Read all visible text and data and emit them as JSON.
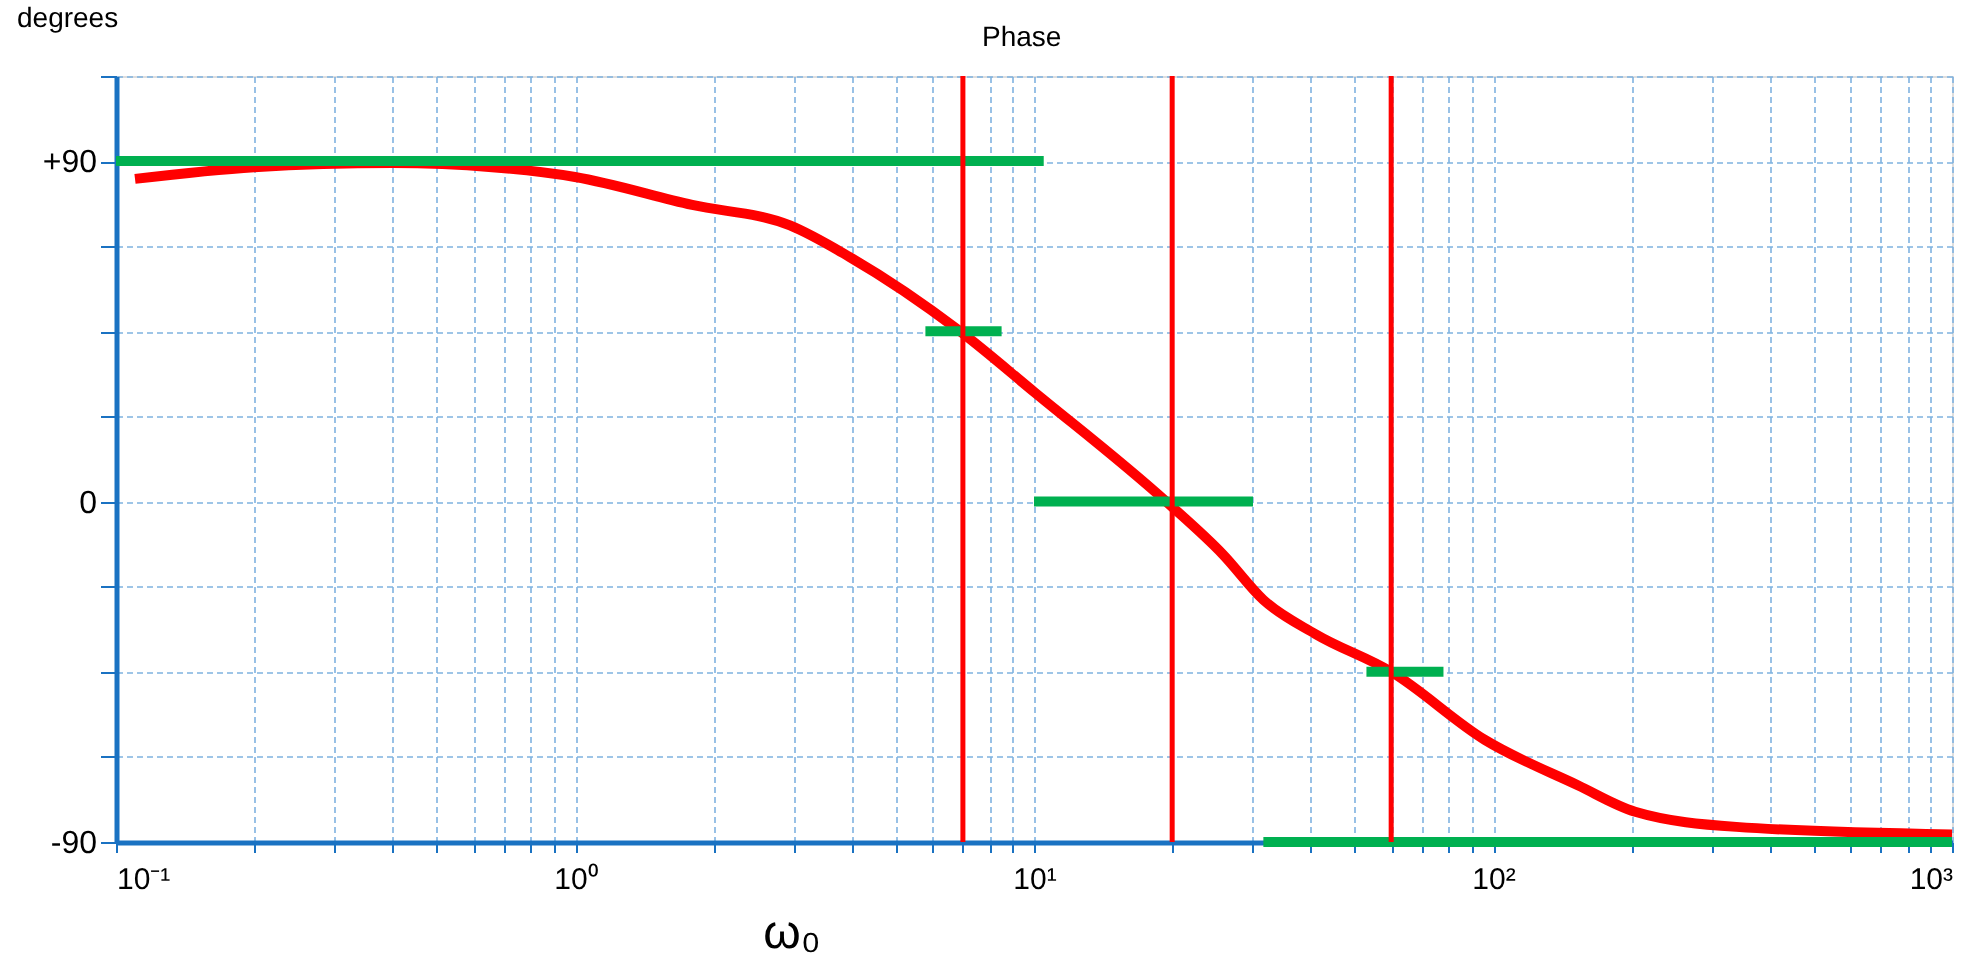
{
  "chart_data": {
    "type": "line",
    "title": "Phase",
    "ylabel": "degrees",
    "annotations": [
      "ω₀"
    ],
    "log": "x",
    "grid": true,
    "legend": false,
    "line_style": "solid",
    "marker": "none",
    "xlim": [
      0.1,
      1000
    ],
    "ylim": [
      -90,
      112.5
    ],
    "xticks": [
      {
        "value": 0.1,
        "label": "10⁻¹"
      },
      {
        "value": 0.2,
        "label": null
      },
      {
        "value": 0.3,
        "label": null
      },
      {
        "value": 0.4,
        "label": null
      },
      {
        "value": 0.5,
        "label": null
      },
      {
        "value": 0.6,
        "label": null
      },
      {
        "value": 0.7,
        "label": null
      },
      {
        "value": 0.8,
        "label": null
      },
      {
        "value": 0.9,
        "label": null
      },
      {
        "value": 1,
        "label": "10⁰"
      },
      {
        "value": 2,
        "label": null
      },
      {
        "value": 3,
        "label": null
      },
      {
        "value": 4,
        "label": null
      },
      {
        "value": 5,
        "label": null
      },
      {
        "value": 6,
        "label": null
      },
      {
        "value": 7,
        "label": null
      },
      {
        "value": 8,
        "label": null
      },
      {
        "value": 9,
        "label": null
      },
      {
        "value": 10,
        "label": "10¹"
      },
      {
        "value": 20,
        "label": null
      },
      {
        "value": 30,
        "label": null
      },
      {
        "value": 40,
        "label": null
      },
      {
        "value": 50,
        "label": null
      },
      {
        "value": 60,
        "label": null
      },
      {
        "value": 70,
        "label": null
      },
      {
        "value": 80,
        "label": null
      },
      {
        "value": 90,
        "label": null
      },
      {
        "value": 100,
        "label": "10²"
      },
      {
        "value": 200,
        "label": null
      },
      {
        "value": 300,
        "label": null
      },
      {
        "value": 400,
        "label": null
      },
      {
        "value": 500,
        "label": null
      },
      {
        "value": 600,
        "label": null
      },
      {
        "value": 700,
        "label": null
      },
      {
        "value": 800,
        "label": null
      },
      {
        "value": 900,
        "label": null
      },
      {
        "value": 1000,
        "label": "10³"
      }
    ],
    "yticks": [
      {
        "value": -90,
        "label": "-90"
      },
      {
        "value": -67.5,
        "label": null
      },
      {
        "value": -45,
        "label": null
      },
      {
        "value": -22.5,
        "label": null
      },
      {
        "value": 0,
        "label": "0"
      },
      {
        "value": 22.5,
        "label": null
      },
      {
        "value": 45,
        "label": null
      },
      {
        "value": 67.5,
        "label": null
      },
      {
        "value": 90,
        "label": "+90"
      },
      {
        "value": 112.5,
        "label": null
      }
    ],
    "series": [
      {
        "color": "#ff0000",
        "x": [
          0.11,
          0.2,
          0.4,
          0.66,
          1,
          1.8,
          2.94,
          3.96,
          6.9,
          10,
          19.4,
          25.8,
          31.6,
          41,
          60,
          96,
          153,
          204,
          339,
          1000
        ],
        "values": [
          85.3,
          88.4,
          89.5,
          88.4,
          85.8,
          78.4,
          73,
          64.7,
          45,
          29,
          0,
          -14,
          -26,
          -35,
          -45,
          -63,
          -75,
          -82,
          -86,
          -88
        ]
      },
      {
        "color": "#00b050",
        "x": [
          0.1,
          10.5
        ],
        "values": [
          90,
          90
        ]
      },
      {
        "color": "#00b050",
        "x": [
          5.8,
          8.5
        ],
        "values": [
          45,
          45
        ]
      },
      {
        "color": "#00b050",
        "x": [
          10,
          30
        ],
        "values": [
          0,
          0
        ]
      },
      {
        "color": "#00b050",
        "x": [
          53,
          78
        ],
        "values": [
          -45,
          -45
        ]
      },
      {
        "color": "#00b050",
        "x": [
          31.6,
          1000
        ],
        "values": [
          -90,
          -90
        ]
      }
    ],
    "ref_lines": [
      {
        "axis": "x",
        "value": 7,
        "color": "#ff0000"
      },
      {
        "axis": "x",
        "value": 20,
        "color": "#ff0000"
      },
      {
        "axis": "x",
        "value": 60,
        "color": "#ff0000"
      }
    ]
  }
}
